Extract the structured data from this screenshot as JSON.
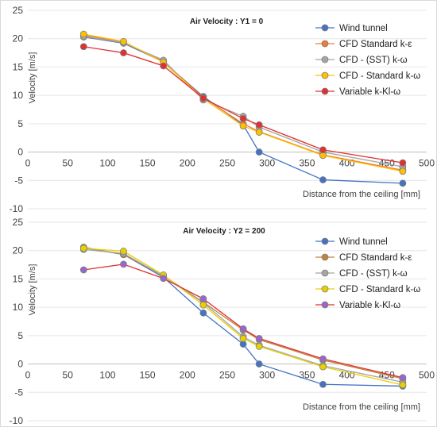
{
  "chart_data": [
    {
      "type": "line",
      "title": "Air Velocity : Y1 = 0",
      "xlabel": "Distance from the ceiling [mm]",
      "ylabel": "Velocity [m/s]",
      "xlim": [
        0,
        500
      ],
      "ylim": [
        -10,
        25
      ],
      "xticks": [
        "0",
        "50",
        "100",
        "150",
        "200",
        "250",
        "300",
        "350",
        "400",
        "450",
        "500"
      ],
      "yticks": [
        "25",
        "20",
        "15",
        "10",
        "5",
        "0",
        "-5",
        "-10"
      ],
      "grid": true,
      "legend_position": "right",
      "series": [
        {
          "name": "Wind tunnel",
          "color": "#4472C4",
          "x": [
            70,
            120,
            170,
            220,
            270,
            290,
            370,
            470
          ],
          "y": [
            20.3,
            19.2,
            15.9,
            9.8,
            4.8,
            0.0,
            -4.9,
            -5.5
          ]
        },
        {
          "name": "CFD Standard k-ε",
          "color": "#ED7D31",
          "x": [
            70,
            120,
            170,
            220,
            270,
            290,
            370,
            470
          ],
          "y": [
            20.6,
            19.4,
            16.0,
            9.6,
            5.0,
            3.6,
            -0.5,
            -3.2
          ]
        },
        {
          "name": "CFD - (SST) k-ω",
          "color": "#A5A5A5",
          "x": [
            70,
            120,
            170,
            220,
            270,
            290,
            370,
            470
          ],
          "y": [
            20.4,
            19.3,
            16.2,
            9.2,
            6.3,
            4.4,
            0.0,
            -2.6
          ]
        },
        {
          "name": "CFD - Standard k-ω",
          "color": "#FFC000",
          "x": [
            70,
            120,
            170,
            220,
            270,
            290,
            370,
            470
          ],
          "y": [
            20.8,
            19.5,
            15.8,
            9.4,
            4.6,
            3.5,
            -0.6,
            -3.4
          ]
        },
        {
          "name": "Variable k-Kl-ω",
          "color": "#E03030",
          "x": [
            70,
            120,
            170,
            220,
            270,
            290,
            370,
            470
          ],
          "y": [
            18.6,
            17.5,
            15.2,
            9.5,
            5.9,
            4.8,
            0.4,
            -1.9
          ]
        }
      ]
    },
    {
      "type": "line",
      "title": "Air Velocity : Y2 = 200",
      "xlabel": "Distance from the ceiling [mm]",
      "ylabel": "Velocity [m/s]",
      "xlim": [
        0,
        500
      ],
      "ylim": [
        -10,
        25
      ],
      "xticks": [
        "0",
        "50",
        "100",
        "150",
        "200",
        "250",
        "300",
        "350",
        "400",
        "450",
        "500"
      ],
      "yticks": [
        "25",
        "20",
        "15",
        "10",
        "5",
        "0",
        "-5",
        "-10"
      ],
      "grid": true,
      "legend_position": "right",
      "series": [
        {
          "name": "Wind tunnel",
          "color": "#4472C4",
          "x": [
            70,
            120,
            170,
            220,
            270,
            290,
            370,
            470
          ],
          "y": [
            20.5,
            19.3,
            15.3,
            9.0,
            3.5,
            0.0,
            -3.6,
            -3.9
          ]
        },
        {
          "name": "CFD Standard k-ε",
          "color": "#C0843A",
          "x": [
            70,
            120,
            170,
            220,
            270,
            290,
            370,
            470
          ],
          "y": [
            20.6,
            19.3,
            15.6,
            10.9,
            6.0,
            4.3,
            0.7,
            -2.6
          ]
        },
        {
          "name": "CFD - (SST) k-ω",
          "color": "#A5A5A5",
          "x": [
            70,
            120,
            170,
            220,
            270,
            290,
            370,
            470
          ],
          "y": [
            20.2,
            19.5,
            15.5,
            10.8,
            4.8,
            3.3,
            -0.3,
            -3.2
          ]
        },
        {
          "name": "CFD - Standard k-ω",
          "color": "#E8D000",
          "x": [
            70,
            120,
            170,
            220,
            270,
            290,
            370,
            470
          ],
          "y": [
            20.4,
            19.9,
            15.7,
            10.4,
            4.5,
            3.1,
            -0.5,
            -3.7
          ]
        },
        {
          "name": "Variable k-Kl-ω",
          "color": "#E03030",
          "marker_color": "#9966CC",
          "x": [
            70,
            120,
            170,
            220,
            270,
            290,
            370,
            470
          ],
          "y": [
            16.6,
            17.6,
            15.1,
            11.5,
            6.2,
            4.5,
            0.9,
            -2.4
          ]
        }
      ]
    }
  ]
}
